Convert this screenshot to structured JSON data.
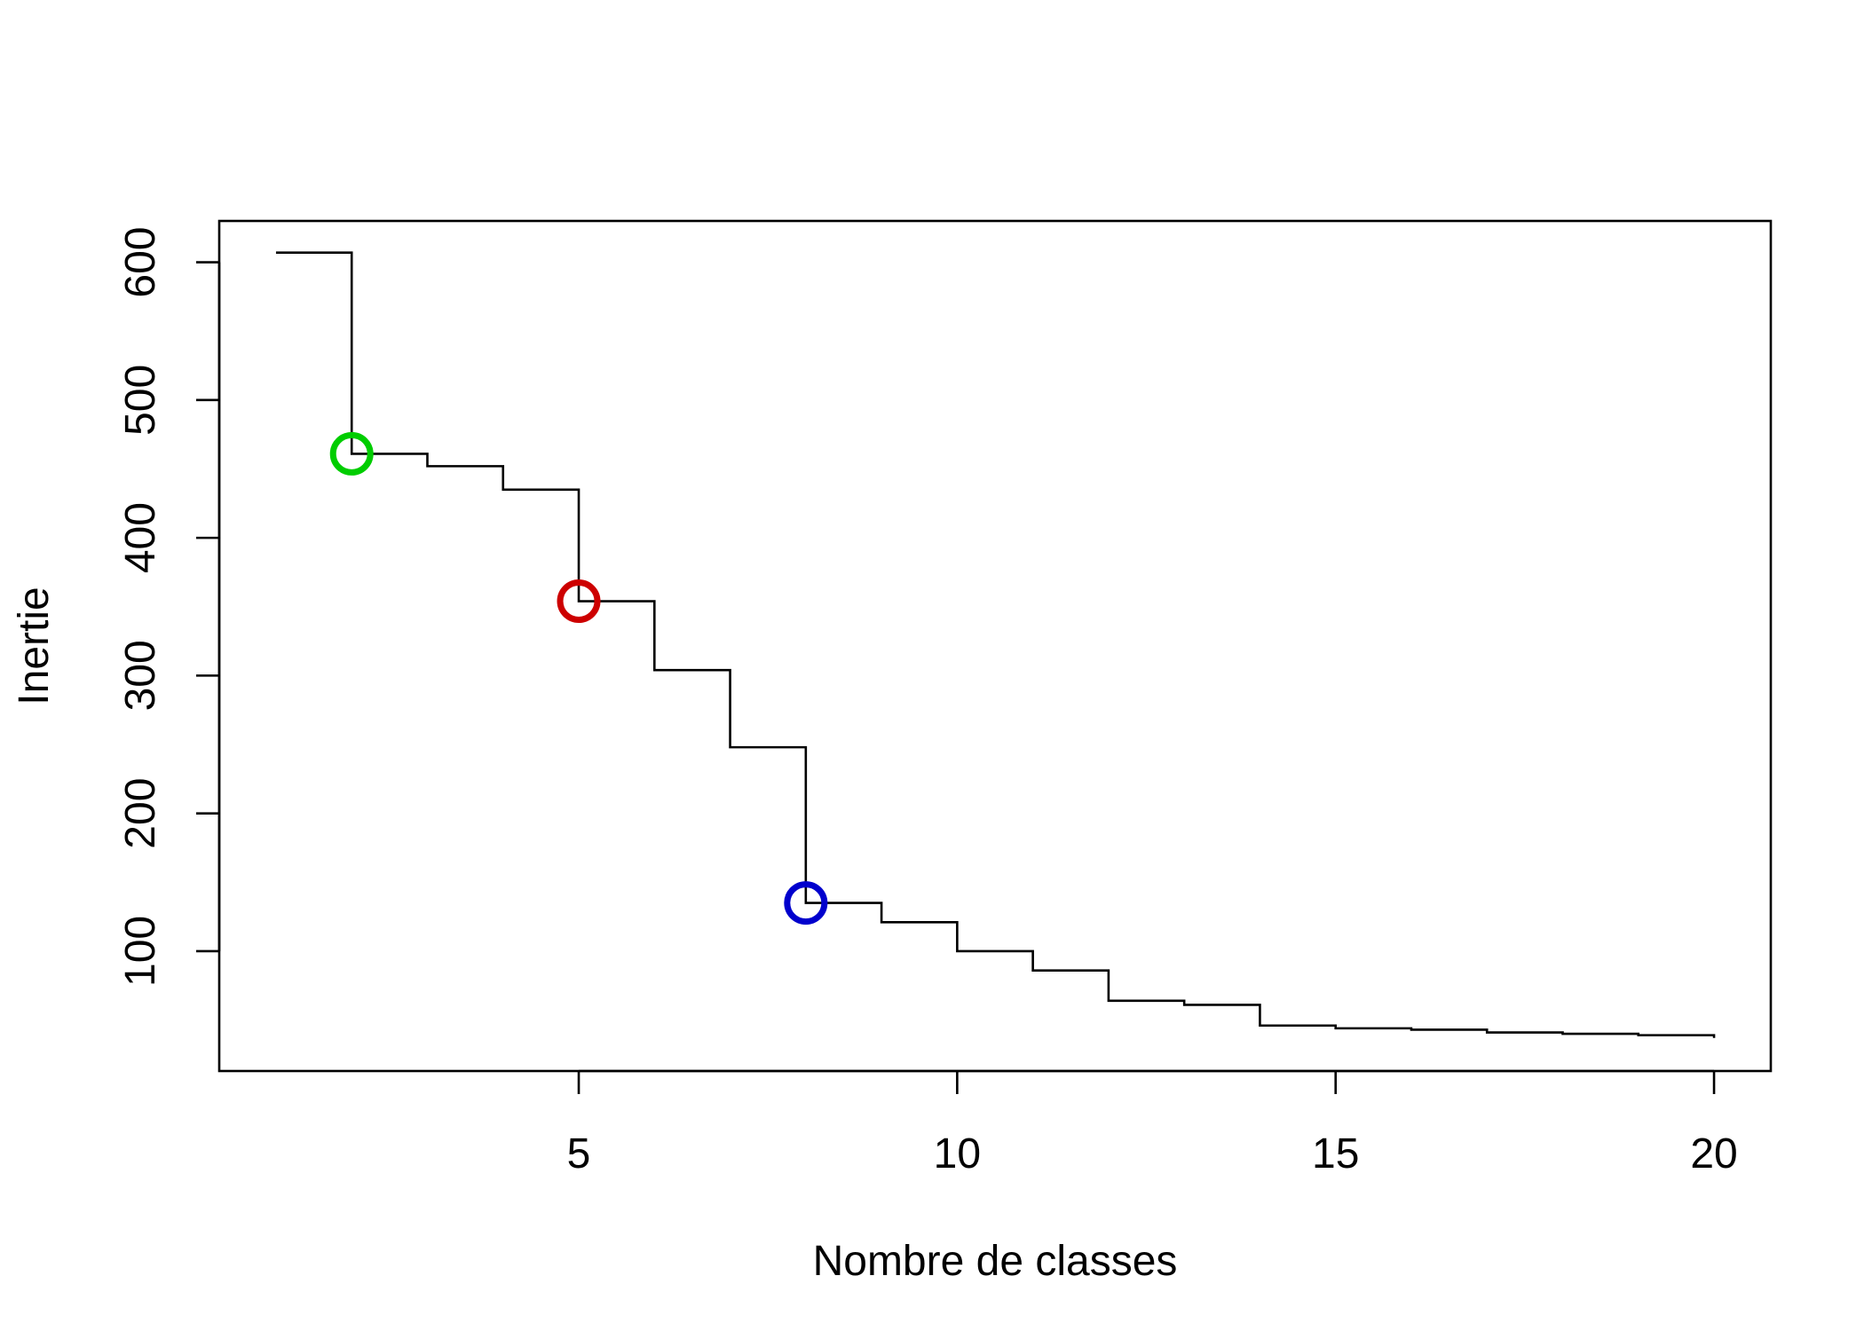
{
  "chart_data": {
    "type": "line",
    "style": "step",
    "title": "",
    "xlabel": "Nombre de classes",
    "ylabel": "Inertie",
    "xlim": [
      0.25,
      20.75
    ],
    "ylim": [
      13,
      630
    ],
    "x_ticks": [
      5,
      10,
      15,
      20
    ],
    "y_ticks": [
      100,
      200,
      300,
      400,
      500,
      600
    ],
    "grid": false,
    "series": [
      {
        "color": "#000000",
        "x": [
          1,
          2,
          3,
          4,
          5,
          6,
          7,
          8,
          9,
          10,
          11,
          12,
          13,
          14,
          15,
          16,
          17,
          18,
          19,
          20
        ],
        "y": [
          607,
          461,
          452,
          435,
          354,
          304,
          248,
          135,
          121,
          100,
          86,
          64,
          61,
          46,
          44,
          43,
          41,
          40,
          39,
          37
        ]
      }
    ],
    "highlights": [
      {
        "x": 2,
        "y": 461,
        "color": "#00cd00"
      },
      {
        "x": 5,
        "y": 354,
        "color": "#cd0000"
      },
      {
        "x": 8,
        "y": 135,
        "color": "#0000cd"
      }
    ]
  }
}
